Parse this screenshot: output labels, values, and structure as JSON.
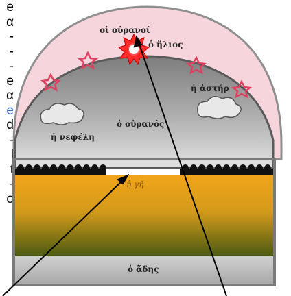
{
  "side_text": [
    "e",
    "α",
    "-",
    "-",
    "-",
    "e",
    "α",
    "e",
    "d",
    "-",
    "l",
    "t",
    "-",
    "o"
  ],
  "side_link_index": 7,
  "labels": {
    "heavens": "οἱ οὐρανοί",
    "sun": "ὁ ἥλιος",
    "star": "ἡ ἀστήρ",
    "sky": "ὁ οὐρανός",
    "cloud": "ἡ νεφέλη",
    "earth": "ἡ γῆ",
    "hades": "ὁ ᾅδης"
  },
  "colors": {
    "outer_dome": "#f6d6dc",
    "inner_dome": "#9a9a9a",
    "earth_top": "#f2a51a",
    "earth_bottom": "#4a5a12",
    "underworld": "#b9b9b9",
    "star": "#e04060",
    "link": "#3366cc"
  }
}
